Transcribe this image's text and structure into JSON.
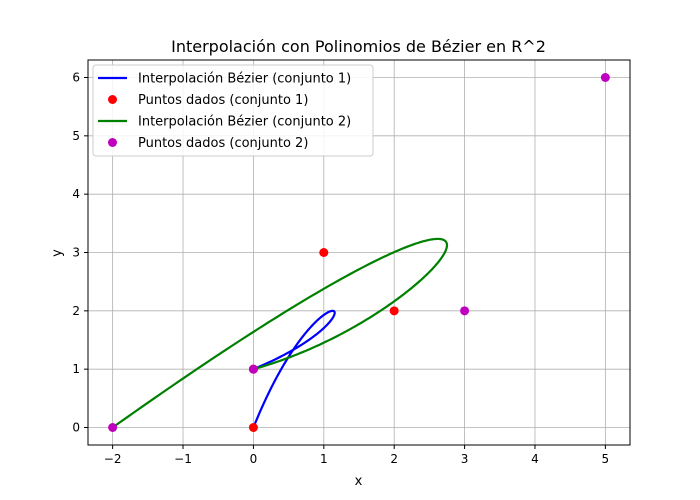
{
  "chart_data": {
    "type": "line",
    "title": "Interpolación con Polinomios de Bézier en R^2",
    "xlabel": "x",
    "ylabel": "y",
    "xlim": [
      -2.35,
      5.35
    ],
    "ylim": [
      -0.3,
      6.3
    ],
    "xticks": [
      -2,
      -1,
      0,
      1,
      2,
      3,
      4,
      5
    ],
    "yticks": [
      0,
      1,
      2,
      3,
      4,
      5,
      6
    ],
    "grid": true,
    "legend_position": "top-left",
    "series": [
      {
        "name": "Interpolación Bézier (conjunto 1)",
        "kind": "line",
        "color": "#0000ff",
        "control_points": [
          [
            0,
            0
          ],
          [
            1,
            3
          ],
          [
            2,
            2
          ],
          [
            0,
            1
          ]
        ]
      },
      {
        "name": "Puntos dados (conjunto 1)",
        "kind": "scatter",
        "color": "#ff0000",
        "points": [
          [
            0,
            0
          ],
          [
            1,
            3
          ],
          [
            2,
            2
          ],
          [
            0,
            1
          ]
        ]
      },
      {
        "name": "Interpolación Bézier (conjunto 2)",
        "kind": "line",
        "color": "#008000",
        "control_points": [
          [
            -2,
            0
          ],
          [
            5,
            6
          ],
          [
            3,
            2
          ],
          [
            0,
            1
          ]
        ]
      },
      {
        "name": "Puntos dados (conjunto 2)",
        "kind": "scatter",
        "color": "#bf00bf",
        "points": [
          [
            -2,
            0
          ],
          [
            5,
            6
          ],
          [
            3,
            2
          ],
          [
            0,
            1
          ]
        ]
      }
    ]
  }
}
